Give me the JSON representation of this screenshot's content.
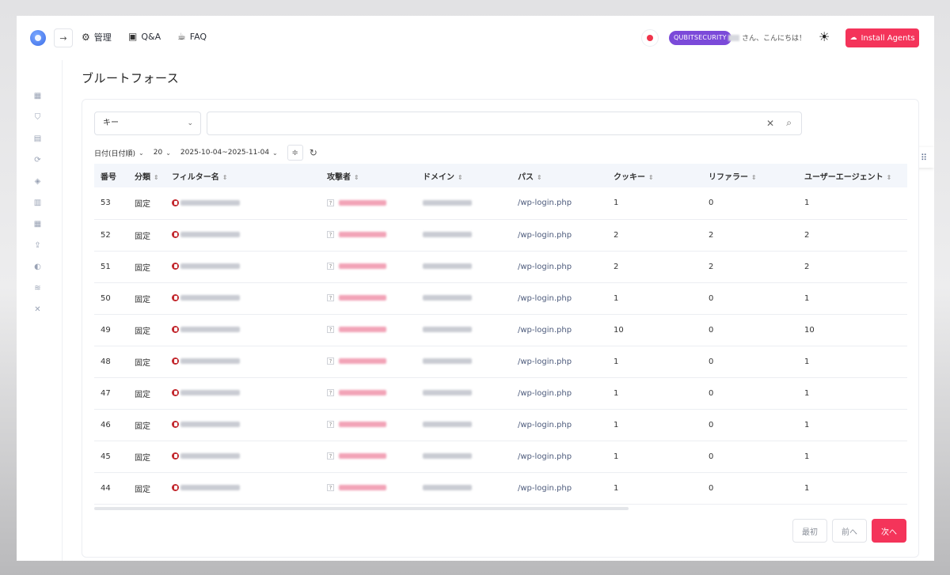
{
  "header": {
    "nav": [
      {
        "label": "管理",
        "icon": "gear-icon"
      },
      {
        "label": "Q&A",
        "icon": "chat-icon"
      },
      {
        "label": "FAQ",
        "icon": "cup-icon"
      }
    ],
    "org_badge": "QUBITSECURITY",
    "greeting": "さん、こんにちは！",
    "install_label": "Install Agents"
  },
  "page": {
    "title": "ブルートフォース"
  },
  "search": {
    "key_select": "キー",
    "value": "",
    "placeholder": ""
  },
  "filters": {
    "date_type": "日付(日付順)",
    "page_size": "20",
    "date_range": "2025-10-04~2025-11-04"
  },
  "table": {
    "columns": [
      "番号",
      "分類",
      "フィルター名",
      "攻撃者",
      "ドメイン",
      "パス",
      "クッキー",
      "リファラー",
      "ユーザーエージェント"
    ],
    "rows": [
      {
        "no": "53",
        "category": "固定",
        "path": "/wp-login.php",
        "cookie": "1",
        "referer": "0",
        "ua": "1"
      },
      {
        "no": "52",
        "category": "固定",
        "path": "/wp-login.php",
        "cookie": "2",
        "referer": "2",
        "ua": "2"
      },
      {
        "no": "51",
        "category": "固定",
        "path": "/wp-login.php",
        "cookie": "2",
        "referer": "2",
        "ua": "2"
      },
      {
        "no": "50",
        "category": "固定",
        "path": "/wp-login.php",
        "cookie": "1",
        "referer": "0",
        "ua": "1"
      },
      {
        "no": "49",
        "category": "固定",
        "path": "/wp-login.php",
        "cookie": "10",
        "referer": "0",
        "ua": "10"
      },
      {
        "no": "48",
        "category": "固定",
        "path": "/wp-login.php",
        "cookie": "1",
        "referer": "0",
        "ua": "1"
      },
      {
        "no": "47",
        "category": "固定",
        "path": "/wp-login.php",
        "cookie": "1",
        "referer": "0",
        "ua": "1"
      },
      {
        "no": "46",
        "category": "固定",
        "path": "/wp-login.php",
        "cookie": "1",
        "referer": "0",
        "ua": "1"
      },
      {
        "no": "45",
        "category": "固定",
        "path": "/wp-login.php",
        "cookie": "1",
        "referer": "0",
        "ua": "1"
      },
      {
        "no": "44",
        "category": "固定",
        "path": "/wp-login.php",
        "cookie": "1",
        "referer": "0",
        "ua": "1"
      }
    ]
  },
  "pagination": {
    "first": "最初",
    "prev": "前へ",
    "next": "次へ"
  },
  "colors": {
    "accent": "#f4345a",
    "badge": "#7b4ad9",
    "table_header_bg": "#f3f6fb"
  }
}
